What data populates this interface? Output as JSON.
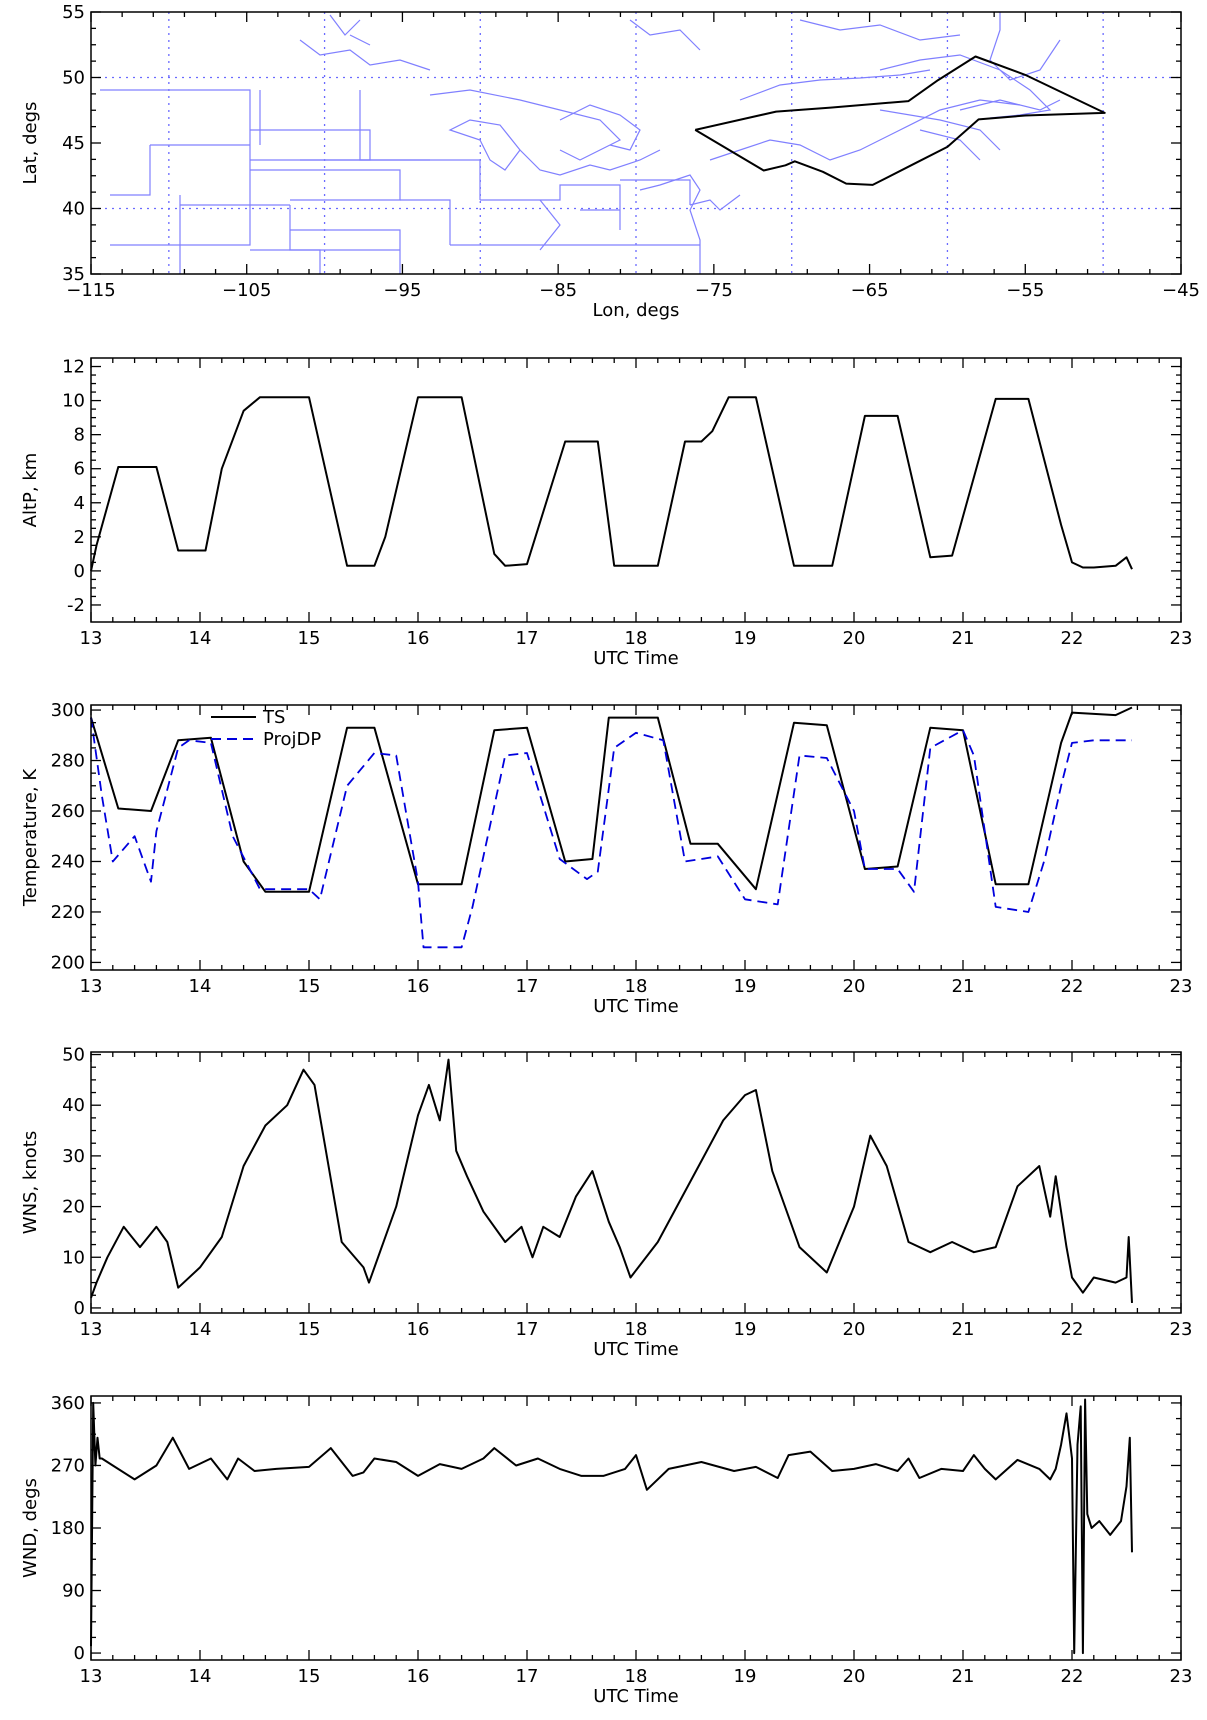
{
  "chart_data": [
    {
      "type": "line",
      "panel": "map",
      "xlabel": "Lon, degs",
      "ylabel": "Lat, degs",
      "xlim": [
        -115,
        -45
      ],
      "ylim": [
        35,
        55
      ],
      "xticks": [
        -115,
        -105,
        -95,
        -85,
        -75,
        -65,
        -55,
        -45
      ],
      "xtick_labels": [
        "−115",
        "−105",
        "−95",
        "−85",
        "−75",
        "−65",
        "−55",
        "−45"
      ],
      "yticks": [
        35,
        40,
        45,
        50,
        55
      ],
      "grid": true,
      "grid_lon": [
        -110,
        -100,
        -90,
        -80,
        -70,
        -60,
        -50
      ],
      "grid_lat": [
        40,
        50
      ],
      "colors": {
        "map": "#8080ff",
        "track": "#000000",
        "grid": "#6a6aff"
      },
      "series": [
        {
          "x": [
            -76.2,
            -71.0,
            -67.5,
            -62.5,
            -60.6,
            -58.2,
            -55.0,
            -49.9,
            -55.0,
            -58.0,
            -60.0,
            -62.0,
            -64.8,
            -66.5,
            -68.0,
            -69.8,
            -70.4,
            -71.8,
            -76.2
          ],
          "y": [
            46.0,
            47.4,
            47.7,
            48.2,
            49.8,
            51.6,
            50.2,
            47.3,
            47.1,
            46.8,
            44.7,
            43.5,
            41.8,
            41.9,
            42.8,
            43.6,
            43.3,
            42.9,
            46.0
          ]
        }
      ]
    },
    {
      "type": "line",
      "panel": "altp",
      "xlabel": "UTC Time",
      "ylabel": "AltP, km",
      "xlim": [
        13,
        23
      ],
      "ylim": [
        -3,
        12.5
      ],
      "xticks": [
        13,
        14,
        15,
        16,
        17,
        18,
        19,
        20,
        21,
        22,
        23
      ],
      "yticks": [
        -2,
        0,
        2,
        4,
        6,
        8,
        10,
        12
      ],
      "series": [
        {
          "x": [
            13.0,
            13.05,
            13.25,
            13.6,
            13.8,
            14.05,
            14.2,
            14.4,
            14.55,
            15.0,
            15.35,
            15.6,
            15.7,
            16.0,
            16.4,
            16.7,
            16.8,
            17.0,
            17.35,
            17.65,
            17.8,
            18.2,
            18.45,
            18.6,
            18.7,
            18.85,
            19.1,
            19.45,
            19.8,
            20.1,
            20.4,
            20.7,
            20.9,
            21.3,
            21.6,
            21.9,
            22.0,
            22.1,
            22.2,
            22.4,
            22.5,
            22.55
          ],
          "y": [
            0.0,
            1.5,
            6.1,
            6.1,
            1.2,
            1.2,
            6.0,
            9.4,
            10.2,
            10.2,
            0.3,
            0.3,
            2.0,
            10.2,
            10.2,
            1.0,
            0.3,
            0.4,
            7.6,
            7.6,
            0.3,
            0.3,
            7.6,
            7.6,
            8.2,
            10.2,
            10.2,
            0.3,
            0.3,
            9.1,
            9.1,
            0.8,
            0.9,
            10.1,
            10.1,
            2.7,
            0.5,
            0.2,
            0.2,
            0.3,
            0.8,
            0.1
          ]
        }
      ]
    },
    {
      "type": "line",
      "panel": "temperature",
      "xlabel": "UTC Time",
      "ylabel": "Temperature, K",
      "xlim": [
        13,
        23
      ],
      "ylim": [
        197,
        302
      ],
      "xticks": [
        13,
        14,
        15,
        16,
        17,
        18,
        19,
        20,
        21,
        22,
        23
      ],
      "yticks": [
        200,
        220,
        240,
        260,
        280,
        300
      ],
      "legend": "top-left",
      "series": [
        {
          "name": "TS",
          "color": "#000000",
          "x": [
            13.0,
            13.25,
            13.55,
            13.8,
            14.1,
            14.4,
            14.6,
            15.0,
            15.35,
            15.6,
            16.0,
            16.4,
            16.7,
            17.0,
            17.35,
            17.6,
            17.75,
            18.2,
            18.5,
            18.75,
            19.1,
            19.45,
            19.75,
            20.1,
            20.4,
            20.7,
            21.0,
            21.3,
            21.6,
            21.9,
            22.0,
            22.4,
            22.55
          ],
          "y": [
            297,
            261,
            260,
            288,
            289,
            240,
            228,
            228,
            293,
            293,
            231,
            231,
            292,
            293,
            240,
            241,
            297,
            297,
            247,
            247,
            229,
            295,
            294,
            237,
            238,
            293,
            292,
            231,
            231,
            287,
            299,
            298,
            301
          ]
        },
        {
          "name": "ProjDP",
          "color": "#0000dd",
          "dash": true,
          "x": [
            13.0,
            13.1,
            13.2,
            13.4,
            13.55,
            13.6,
            13.8,
            13.9,
            14.1,
            14.3,
            14.55,
            15.0,
            15.1,
            15.35,
            15.6,
            15.8,
            16.0,
            16.05,
            16.4,
            16.5,
            16.8,
            17.0,
            17.3,
            17.55,
            17.65,
            17.8,
            18.0,
            18.25,
            18.45,
            18.75,
            19.0,
            19.3,
            19.5,
            19.75,
            20.0,
            20.1,
            20.4,
            20.55,
            20.7,
            21.0,
            21.1,
            21.3,
            21.6,
            21.75,
            21.9,
            22.0,
            22.2,
            22.55
          ],
          "y": [
            297,
            266,
            240,
            250,
            232,
            252,
            285,
            288,
            287,
            250,
            229,
            229,
            225,
            270,
            283,
            282,
            232,
            206,
            206,
            222,
            282,
            283,
            241,
            233,
            236,
            285,
            291,
            288,
            240,
            242,
            225,
            223,
            282,
            281,
            260,
            237,
            237,
            228,
            285,
            292,
            282,
            222,
            220,
            241,
            270,
            287,
            288,
            288
          ]
        }
      ]
    },
    {
      "type": "line",
      "panel": "wns",
      "xlabel": "UTC Time",
      "ylabel": "WNS, knots",
      "xlim": [
        13,
        23
      ],
      "ylim": [
        -1,
        50.5
      ],
      "xticks": [
        13,
        14,
        15,
        16,
        17,
        18,
        19,
        20,
        21,
        22,
        23
      ],
      "yticks": [
        0,
        10,
        20,
        30,
        40,
        50
      ],
      "series": [
        {
          "x": [
            13.0,
            13.05,
            13.15,
            13.3,
            13.45,
            13.6,
            13.7,
            13.8,
            14.0,
            14.2,
            14.4,
            14.6,
            14.8,
            14.95,
            15.05,
            15.3,
            15.5,
            15.55,
            15.8,
            16.0,
            16.1,
            16.2,
            16.28,
            16.35,
            16.45,
            16.6,
            16.8,
            16.95,
            17.05,
            17.15,
            17.3,
            17.45,
            17.6,
            17.75,
            17.85,
            17.95,
            18.2,
            18.4,
            18.6,
            18.8,
            19.0,
            19.1,
            19.25,
            19.5,
            19.75,
            20.0,
            20.15,
            20.3,
            20.5,
            20.7,
            20.9,
            21.1,
            21.3,
            21.5,
            21.7,
            21.8,
            21.85,
            21.95,
            22.0,
            22.1,
            22.2,
            22.4,
            22.5,
            22.52,
            22.55
          ],
          "y": [
            2,
            5,
            10,
            16,
            12,
            16,
            13,
            4,
            8,
            14,
            28,
            36,
            40,
            47,
            44,
            13,
            8,
            5,
            20,
            38,
            44,
            37,
            49,
            31,
            26,
            19,
            13,
            16,
            10,
            16,
            14,
            22,
            27,
            17,
            12,
            6,
            13,
            21,
            29,
            37,
            42,
            43,
            27,
            12,
            7,
            20,
            34,
            28,
            13,
            11,
            13,
            11,
            12,
            24,
            28,
            18,
            26,
            12,
            6,
            3,
            6,
            5,
            6,
            14,
            1
          ]
        }
      ]
    },
    {
      "type": "line",
      "panel": "wnd",
      "xlabel": "UTC Time",
      "ylabel": "WND, degs",
      "xlim": [
        13,
        23
      ],
      "ylim": [
        -10,
        370
      ],
      "xticks": [
        13,
        14,
        15,
        16,
        17,
        18,
        19,
        20,
        21,
        22,
        23
      ],
      "yticks": [
        0,
        90,
        180,
        270,
        360
      ],
      "series": [
        {
          "x": [
            13.0,
            13.02,
            13.04,
            13.06,
            13.08,
            13.1,
            13.2,
            13.4,
            13.6,
            13.75,
            13.9,
            14.1,
            14.25,
            14.35,
            14.5,
            14.7,
            15.0,
            15.2,
            15.4,
            15.5,
            15.6,
            15.8,
            16.0,
            16.2,
            16.4,
            16.6,
            16.7,
            16.9,
            17.1,
            17.3,
            17.5,
            17.7,
            17.9,
            18.0,
            18.1,
            18.3,
            18.6,
            18.9,
            19.1,
            19.3,
            19.4,
            19.6,
            19.8,
            20.0,
            20.2,
            20.4,
            20.5,
            20.6,
            20.8,
            21.0,
            21.1,
            21.2,
            21.3,
            21.5,
            21.7,
            21.8,
            21.85,
            21.9,
            21.95,
            22.0,
            22.02,
            22.05,
            22.08,
            22.1,
            22.12,
            22.14,
            22.18,
            22.25,
            22.35,
            22.45,
            22.5,
            22.53,
            22.55
          ],
          "y": [
            10,
            360,
            270,
            310,
            280,
            280,
            270,
            250,
            270,
            310,
            265,
            280,
            250,
            280,
            262,
            265,
            268,
            295,
            255,
            260,
            280,
            275,
            255,
            272,
            265,
            280,
            295,
            270,
            280,
            265,
            255,
            255,
            265,
            285,
            235,
            265,
            275,
            262,
            268,
            252,
            285,
            290,
            262,
            265,
            272,
            262,
            280,
            252,
            265,
            262,
            285,
            265,
            250,
            278,
            265,
            250,
            265,
            300,
            345,
            280,
            0,
            300,
            355,
            0,
            365,
            200,
            180,
            190,
            170,
            190,
            240,
            310,
            145
          ]
        }
      ]
    }
  ]
}
